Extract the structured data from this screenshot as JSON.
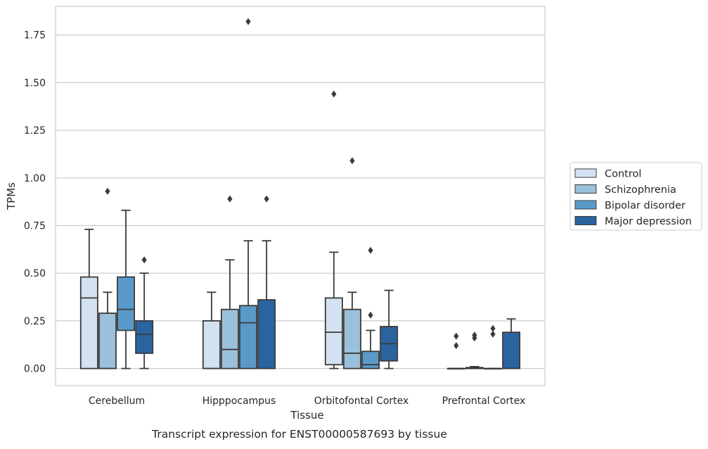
{
  "chart_data": {
    "type": "boxplot",
    "caption": "Transcript expression for ENST00000587693 by tissue",
    "xlabel": "Tissue",
    "ylabel": "TPMs",
    "ylim": [
      -0.09,
      1.9
    ],
    "yticks": [
      0.0,
      0.25,
      0.5,
      0.75,
      1.0,
      1.25,
      1.5,
      1.75
    ],
    "ytick_labels": [
      "0.00",
      "0.25",
      "0.50",
      "0.75",
      "1.00",
      "1.25",
      "1.50",
      "1.75"
    ],
    "grid": true,
    "legend_position": "right",
    "categories": [
      "Cerebellum",
      "Hipppocampus",
      "Orbitofontal Cortex",
      "Prefrontal Cortex"
    ],
    "series": [
      {
        "name": "Control",
        "color": "#d3e2f1",
        "boxes": [
          {
            "q1": 0.0,
            "median": 0.37,
            "q3": 0.48,
            "whisker_low": 0.0,
            "whisker_high": 0.73,
            "outliers": []
          },
          {
            "q1": 0.0,
            "median": 0.0,
            "q3": 0.25,
            "whisker_low": 0.0,
            "whisker_high": 0.4,
            "outliers": []
          },
          {
            "q1": 0.02,
            "median": 0.19,
            "q3": 0.37,
            "whisker_low": 0.0,
            "whisker_high": 0.61,
            "outliers": [
              1.44
            ]
          },
          {
            "q1": 0.0,
            "median": 0.0,
            "q3": 0.0,
            "whisker_low": 0.0,
            "whisker_high": 0.0,
            "outliers": [
              0.12,
              0.17
            ]
          }
        ]
      },
      {
        "name": "Schizophrenia",
        "color": "#9ac0db",
        "boxes": [
          {
            "q1": 0.0,
            "median": 0.0,
            "q3": 0.29,
            "whisker_low": 0.0,
            "whisker_high": 0.4,
            "outliers": [
              0.93
            ]
          },
          {
            "q1": 0.0,
            "median": 0.1,
            "q3": 0.31,
            "whisker_low": 0.0,
            "whisker_high": 0.57,
            "outliers": [
              0.89
            ]
          },
          {
            "q1": 0.0,
            "median": 0.08,
            "q3": 0.31,
            "whisker_low": 0.0,
            "whisker_high": 0.4,
            "outliers": [
              1.09
            ]
          },
          {
            "q1": 0.0,
            "median": 0.0,
            "q3": 0.005,
            "whisker_low": 0.0,
            "whisker_high": 0.01,
            "outliers": [
              0.16,
              0.175
            ]
          }
        ]
      },
      {
        "name": "Bipolar disorder",
        "color": "#5a9ac9",
        "boxes": [
          {
            "q1": 0.2,
            "median": 0.31,
            "q3": 0.48,
            "whisker_low": 0.0,
            "whisker_high": 0.83,
            "outliers": []
          },
          {
            "q1": 0.0,
            "median": 0.24,
            "q3": 0.33,
            "whisker_low": 0.0,
            "whisker_high": 0.67,
            "outliers": [
              1.82
            ]
          },
          {
            "q1": 0.0,
            "median": 0.02,
            "q3": 0.09,
            "whisker_low": 0.0,
            "whisker_high": 0.2,
            "outliers": [
              0.28,
              0.62
            ]
          },
          {
            "q1": 0.0,
            "median": 0.0,
            "q3": 0.0,
            "whisker_low": 0.0,
            "whisker_high": 0.0,
            "outliers": [
              0.18,
              0.21
            ]
          }
        ]
      },
      {
        "name": "Major depression",
        "color": "#2a64a0",
        "boxes": [
          {
            "q1": 0.08,
            "median": 0.18,
            "q3": 0.25,
            "whisker_low": 0.0,
            "whisker_high": 0.5,
            "outliers": [
              0.57
            ]
          },
          {
            "q1": 0.0,
            "median": 0.36,
            "q3": 0.36,
            "whisker_low": 0.0,
            "whisker_high": 0.67,
            "outliers": [
              0.89
            ]
          },
          {
            "q1": 0.04,
            "median": 0.13,
            "q3": 0.22,
            "whisker_low": 0.0,
            "whisker_high": 0.41,
            "outliers": []
          },
          {
            "q1": 0.0,
            "median": 0.0,
            "q3": 0.19,
            "whisker_low": 0.0,
            "whisker_high": 0.26,
            "outliers": []
          }
        ]
      }
    ]
  }
}
